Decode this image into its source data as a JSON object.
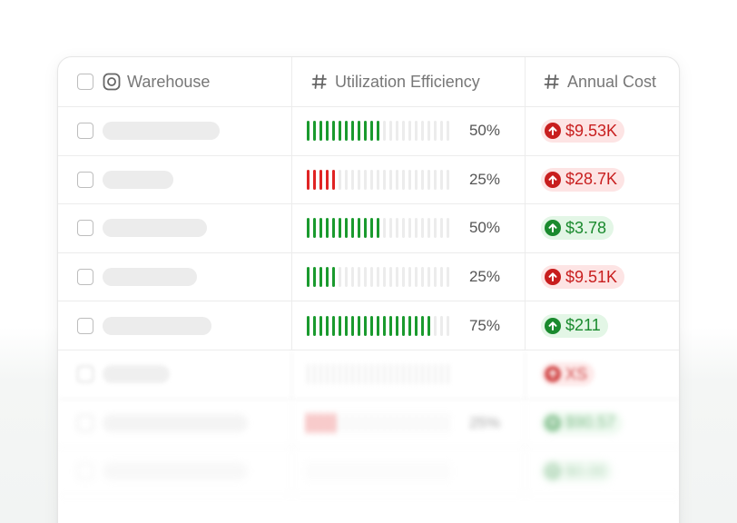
{
  "table": {
    "columns": [
      {
        "label": "Warehouse",
        "icon": "instagram-icon"
      },
      {
        "label": "Utilization Efficiency",
        "icon": "hash-icon"
      },
      {
        "label": "Annual Cost",
        "icon": "hash-icon"
      }
    ],
    "rows": [
      {
        "placeholder_fraction": 0.78,
        "efficiency": 50,
        "efficiency_label": "50%",
        "bar_color": "#1a9a2e",
        "cost": "$9.53K",
        "trend": "up",
        "cost_tone": "red"
      },
      {
        "placeholder_fraction": 0.47,
        "efficiency": 25,
        "efficiency_label": "25%",
        "bar_color": "#e02424",
        "cost": "$28.7K",
        "trend": "up",
        "cost_tone": "red"
      },
      {
        "placeholder_fraction": 0.7,
        "efficiency": 50,
        "efficiency_label": "50%",
        "bar_color": "#1a9a2e",
        "cost": "$3.78",
        "trend": "up",
        "cost_tone": "green"
      },
      {
        "placeholder_fraction": 0.63,
        "efficiency": 25,
        "efficiency_label": "25%",
        "bar_color": "#1a9a2e",
        "cost": "$9.51K",
        "trend": "up",
        "cost_tone": "red"
      },
      {
        "placeholder_fraction": 0.73,
        "efficiency": 75,
        "efficiency_label": "75%",
        "bar_color": "#1a9a2e",
        "cost": "$211",
        "trend": "up",
        "cost_tone": "green"
      },
      {
        "placeholder_fraction": 0.45,
        "efficiency": 0,
        "efficiency_label": "",
        "bar_color": "#1a9a2e",
        "cost": "XS",
        "trend": "up",
        "cost_tone": "red"
      },
      {
        "placeholder_fraction": 0.97,
        "efficiency": 25,
        "efficiency_label": "25%",
        "bar_color": "#e02424",
        "cost": "$90.57",
        "trend": "up",
        "cost_tone": "green"
      },
      {
        "placeholder_fraction": 0.97,
        "efficiency": 0,
        "efficiency_label": "",
        "bar_color": "#1a9a2e",
        "cost": "$0.00",
        "trend": "up",
        "cost_tone": "green"
      }
    ]
  }
}
